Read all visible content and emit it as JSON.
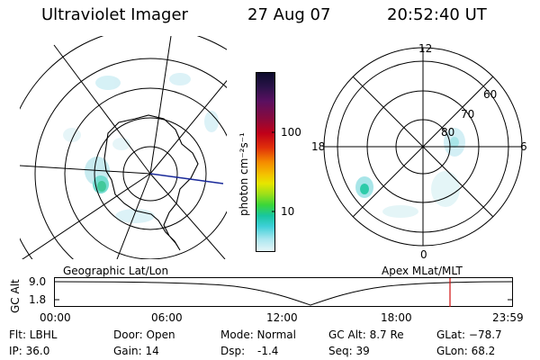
{
  "header": {
    "instrument": "Ultraviolet Imager",
    "date": "27 Aug 07",
    "time": "20:52:40 UT"
  },
  "colorbar": {
    "unit_label": "photon cm⁻²s⁻¹",
    "ticks": [
      "100",
      "10"
    ],
    "colors": [
      "#0b0b2a",
      "#2a1248",
      "#5a1060",
      "#8a0a3c",
      "#b80018",
      "#e0200a",
      "#f26a00",
      "#f7b000",
      "#e6e600",
      "#9bdf1a",
      "#3ad63a",
      "#18c6a0",
      "#3fd0d8",
      "#a9e6ef",
      "#e4f4f7"
    ]
  },
  "left_map": {
    "label": "Geographic Lat/Lon"
  },
  "right_map": {
    "label": "Apex MLat/MLT",
    "lat_labels": [
      "60",
      "70",
      "80"
    ],
    "mlt_labels": [
      "12",
      "18",
      "6",
      "0"
    ]
  },
  "altitude_plot": {
    "axis_label": "GC Alt",
    "y_ticks": [
      "9.0",
      "1.8"
    ],
    "x_ticks": [
      "00:00",
      "06:00",
      "12:00",
      "18:00",
      "23:59"
    ],
    "marker_color": "#d01010"
  },
  "status": {
    "flt": "Flt: LBHL",
    "ip": "IP: 36.0",
    "door": "Door: Open",
    "gain": "Gain: 14",
    "mode": "Mode: Normal",
    "dsp_label": "Dsp:",
    "dsp_value": "-1.4",
    "gc_alt": "GC Alt: 8.7 Re",
    "seq": "Seq: 39",
    "glat": "GLat: −78.7",
    "glon": "GLon:  68.2"
  }
}
